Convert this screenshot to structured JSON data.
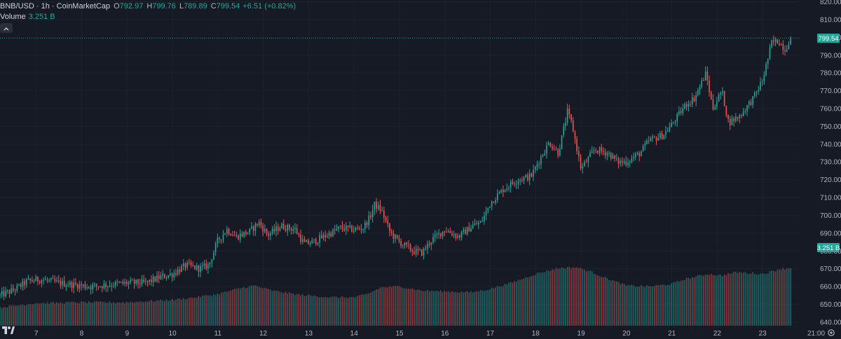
{
  "header": {
    "symbol": "BNB/USD · 1h · CoinMarketCap",
    "open_label": "O",
    "open": "792.97",
    "high_label": "H",
    "high": "799.76",
    "low_label": "L",
    "low": "789.89",
    "close_label": "C",
    "close": "799.54",
    "change": "+6.51 (+0.82%)"
  },
  "volume_legend": {
    "label": "Volume",
    "value": "3.251 B"
  },
  "collapse_icon": "chevron-up-icon",
  "last_price_label": "799.54",
  "last_volume_label": "3.251 B",
  "bottom_right_label": "21:00",
  "logo": "tradingview-logo",
  "colors": {
    "up": "#26a69a",
    "down": "#ef5350",
    "background": "#161a25",
    "grid": "#1e222d",
    "text": "#b2b5be"
  },
  "chart_data": {
    "type": "candlestick",
    "interval": "1h",
    "y_axis_ticks": [
      640,
      650,
      660,
      670,
      680,
      690,
      700,
      710,
      720,
      730,
      740,
      750,
      760,
      770,
      780,
      790,
      800,
      810,
      820
    ],
    "ylim": [
      638,
      821
    ],
    "x_axis_ticks": [
      "7",
      "8",
      "9",
      "10",
      "11",
      "12",
      "13",
      "14",
      "15",
      "16",
      "17",
      "18",
      "19",
      "20",
      "21",
      "22",
      "23"
    ],
    "x_range_days": [
      6.2,
      23.8
    ],
    "price_path": [
      [
        6.2,
        655
      ],
      [
        6.5,
        658
      ],
      [
        6.8,
        663
      ],
      [
        7.1,
        664
      ],
      [
        7.5,
        662
      ],
      [
        7.8,
        661
      ],
      [
        8.2,
        660
      ],
      [
        8.6,
        661
      ],
      [
        9.0,
        662
      ],
      [
        9.4,
        662
      ],
      [
        9.7,
        665
      ],
      [
        10.0,
        667
      ],
      [
        10.3,
        672
      ],
      [
        10.6,
        670
      ],
      [
        10.8,
        672
      ],
      [
        11.0,
        686
      ],
      [
        11.2,
        692
      ],
      [
        11.4,
        688
      ],
      [
        11.7,
        691
      ],
      [
        11.9,
        696
      ],
      [
        12.1,
        689
      ],
      [
        12.4,
        694
      ],
      [
        12.7,
        692
      ],
      [
        12.9,
        684
      ],
      [
        13.1,
        685
      ],
      [
        13.4,
        689
      ],
      [
        13.7,
        693
      ],
      [
        14.0,
        692
      ],
      [
        14.2,
        693
      ],
      [
        14.35,
        699
      ],
      [
        14.45,
        706
      ],
      [
        14.6,
        703
      ],
      [
        14.8,
        690
      ],
      [
        15.0,
        685
      ],
      [
        15.3,
        680
      ],
      [
        15.5,
        679
      ],
      [
        15.7,
        686
      ],
      [
        16.0,
        692
      ],
      [
        16.3,
        688
      ],
      [
        16.6,
        694
      ],
      [
        16.8,
        696
      ],
      [
        17.0,
        707
      ],
      [
        17.3,
        715
      ],
      [
        17.6,
        720
      ],
      [
        17.9,
        722
      ],
      [
        18.1,
        732
      ],
      [
        18.3,
        741
      ],
      [
        18.5,
        735
      ],
      [
        18.7,
        758
      ],
      [
        18.8,
        751
      ],
      [
        19.0,
        726
      ],
      [
        19.3,
        737
      ],
      [
        19.6,
        735
      ],
      [
        19.8,
        730
      ],
      [
        20.0,
        730
      ],
      [
        20.3,
        735
      ],
      [
        20.5,
        742
      ],
      [
        20.8,
        745
      ],
      [
        21.0,
        751
      ],
      [
        21.3,
        762
      ],
      [
        21.5,
        766
      ],
      [
        21.75,
        780
      ],
      [
        21.9,
        760
      ],
      [
        22.1,
        770
      ],
      [
        22.25,
        752
      ],
      [
        22.5,
        756
      ],
      [
        22.8,
        766
      ],
      [
        23.0,
        776
      ],
      [
        23.2,
        797
      ],
      [
        23.35,
        798
      ],
      [
        23.5,
        793
      ],
      [
        23.6,
        799.54
      ]
    ],
    "volume_envelope": [
      [
        6.2,
        0.22
      ],
      [
        7.0,
        0.27
      ],
      [
        8.0,
        0.28
      ],
      [
        9.0,
        0.28
      ],
      [
        10.0,
        0.31
      ],
      [
        10.5,
        0.34
      ],
      [
        11.0,
        0.38
      ],
      [
        11.5,
        0.45
      ],
      [
        11.8,
        0.48
      ],
      [
        12.2,
        0.42
      ],
      [
        12.8,
        0.37
      ],
      [
        13.5,
        0.34
      ],
      [
        14.0,
        0.34
      ],
      [
        14.3,
        0.38
      ],
      [
        14.6,
        0.46
      ],
      [
        15.0,
        0.47
      ],
      [
        15.5,
        0.42
      ],
      [
        16.0,
        0.41
      ],
      [
        16.6,
        0.4
      ],
      [
        17.0,
        0.44
      ],
      [
        17.5,
        0.52
      ],
      [
        18.0,
        0.62
      ],
      [
        18.5,
        0.69
      ],
      [
        18.9,
        0.7
      ],
      [
        19.2,
        0.65
      ],
      [
        19.6,
        0.56
      ],
      [
        20.0,
        0.48
      ],
      [
        20.5,
        0.47
      ],
      [
        21.0,
        0.5
      ],
      [
        21.3,
        0.56
      ],
      [
        21.8,
        0.62
      ],
      [
        22.1,
        0.6
      ],
      [
        22.4,
        0.64
      ],
      [
        23.0,
        0.62
      ],
      [
        23.4,
        0.68
      ],
      [
        23.6,
        0.69
      ]
    ],
    "last_price": 799.54,
    "last_volume": "3.251 B"
  }
}
